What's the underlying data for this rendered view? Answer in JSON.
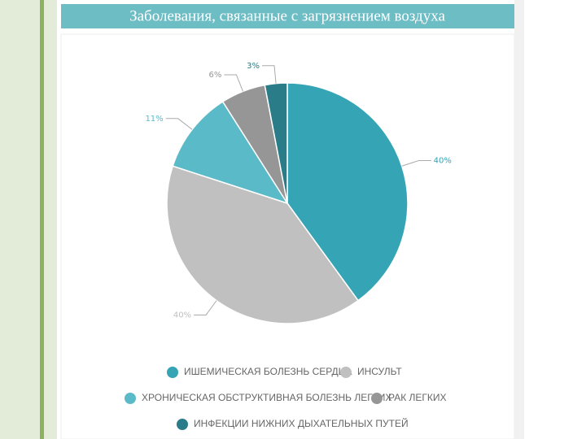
{
  "chart_data": {
    "type": "pie",
    "title": "Заболевания, связанные с загрязнением воздуха",
    "categories": [
      "ИШЕМИЧЕСКАЯ БОЛЕЗНЬ СЕРДЦА",
      "ИНСУЛЬТ",
      "ХРОНИЧЕСКАЯ ОБСТРУКТИВНАЯ БОЛЕЗНЬ ЛЕГКИХ",
      "РАК ЛЕГКИХ",
      "ИНФЕКЦИИ НИЖНИХ ДЫХАТЕЛЬНЫХ ПУТЕЙ"
    ],
    "values": [
      40,
      40,
      11,
      6,
      3
    ],
    "value_labels": [
      "40%",
      "40%",
      "11%",
      "6%",
      "3%"
    ],
    "colors": [
      "#35a4b5",
      "#c0c0c0",
      "#5bbac7",
      "#969696",
      "#2a7c88"
    ]
  }
}
